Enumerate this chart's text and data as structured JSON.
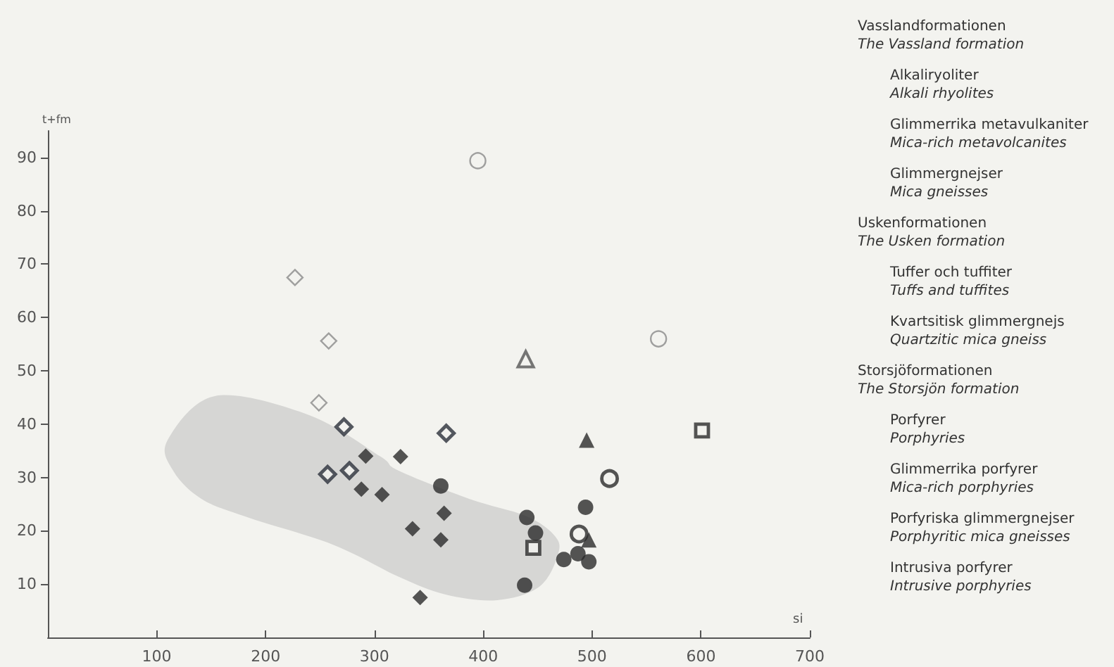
{
  "chart_data": {
    "type": "scatter",
    "xlabel": "si",
    "ylabel": "t+fm",
    "xlim": [
      0,
      700
    ],
    "xticks": [
      100,
      200,
      300,
      400,
      500,
      600,
      700
    ],
    "ylim": [
      0,
      95
    ],
    "yticks": [
      10,
      20,
      30,
      40,
      50,
      60,
      70,
      80,
      90
    ],
    "grid": false,
    "annotations": [
      "Vasslandformationen",
      "The Vassland formation",
      "Alkaliryoliter",
      "Alkali rhyolites",
      "Glimmerrika metavulkaniter",
      "Mica-rich metavolcanites",
      "Glimmergnejser",
      "Mica gneisses",
      "Uskenformationen",
      "The Usken formation",
      "Tuffer och tuffiter",
      "Tuffs and tuffites",
      "Kvartsitisk glimmergnejs",
      "Quartzitic mica gneiss",
      "Storsjöformationen",
      "The Storsjön formation",
      "Porfyrer",
      "Porphyries",
      "Glimmerrika porfyrer",
      "Mica-rich porphyries",
      "Porfyriska glimmergnejser",
      "Porphyritic mica gneisses",
      "Intrusiva porfyrer",
      "Intrusive porphyries"
    ],
    "series": [
      {
        "marker": "diamond",
        "color": "#8a8a8a",
        "x": [
          227,
          258,
          249
        ],
        "values": [
          67.5,
          55.6,
          44
        ]
      },
      {
        "marker": "diamond",
        "color": "#2a2f3a",
        "x": [
          272,
          257,
          277,
          366
        ],
        "values": [
          39.5,
          30.6,
          31.3,
          38.3
        ]
      },
      {
        "marker": "diamond",
        "color": "#2a2a2a",
        "x": [
          292,
          324,
          288,
          307,
          335,
          342,
          364,
          361
        ],
        "values": [
          34,
          33.9,
          27.8,
          26.8,
          20.4,
          7.5,
          23.3,
          18.3
        ]
      },
      {
        "marker": "circle",
        "color": "#2a2a2a",
        "x": [
          361,
          440,
          448,
          438,
          494,
          474,
          487,
          497
        ],
        "values": [
          28.4,
          22.5,
          19.6,
          9.8,
          24.4,
          14.6,
          15.7,
          14.2
        ]
      },
      {
        "marker": "circle",
        "color": "#8a8a8a",
        "x": [
          395,
          561
        ],
        "values": [
          89.4,
          56
        ]
      },
      {
        "marker": "circle",
        "color": "#2a2a2a",
        "x": [
          516,
          488
        ],
        "values": [
          29.8,
          19.4
        ]
      },
      {
        "marker": "triangle",
        "color": "#555555",
        "x": [
          439
        ],
        "values": [
          52.2
        ]
      },
      {
        "marker": "triangle",
        "color": "#2a2a2a",
        "x": [
          495,
          497
        ],
        "values": [
          37,
          18.3
        ]
      },
      {
        "marker": "square",
        "color": "#2a2a2a",
        "x": [
          601,
          446
        ],
        "values": [
          38.8,
          16.8
        ]
      }
    ]
  }
}
